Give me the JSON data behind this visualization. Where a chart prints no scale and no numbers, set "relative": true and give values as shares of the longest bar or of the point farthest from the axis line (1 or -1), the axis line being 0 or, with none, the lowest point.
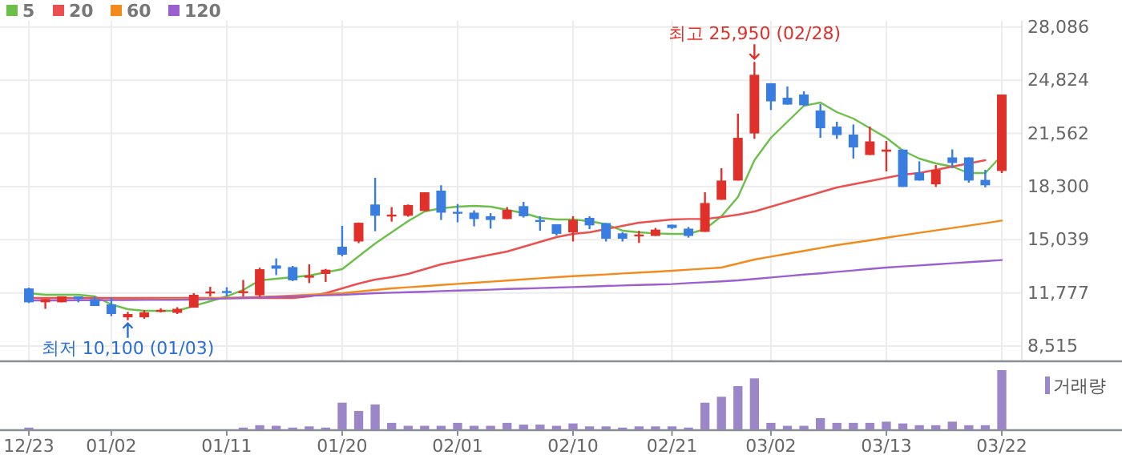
{
  "chart_data": [
    {
      "type": "candlestick",
      "categories": [
        null,
        null,
        null,
        null,
        null,
        null,
        null,
        null,
        null,
        null,
        null,
        null,
        null,
        null,
        null,
        null,
        null,
        null,
        null,
        null,
        null,
        null,
        null,
        null,
        null,
        null,
        null,
        null,
        null,
        null,
        null,
        null,
        null,
        null,
        null,
        null,
        null,
        null,
        null,
        null,
        null,
        null,
        null,
        null,
        null,
        null,
        null,
        null,
        null,
        null,
        null,
        null,
        null,
        null,
        null,
        null,
        null,
        null,
        null,
        null
      ],
      "ohlc": [
        [
          12050,
          12100,
          11150,
          11200
        ],
        [
          11200,
          11400,
          10800,
          11400
        ],
        [
          11200,
          11560,
          11200,
          11560
        ],
        [
          11560,
          11560,
          11200,
          11400
        ],
        [
          11400,
          11560,
          10970,
          10970
        ],
        [
          11070,
          11490,
          10350,
          10480
        ],
        [
          10280,
          10610,
          10100,
          10480
        ],
        [
          10280,
          10720,
          10190,
          10580
        ],
        [
          10680,
          10830,
          10580,
          10730
        ],
        [
          10550,
          10900,
          10480,
          10800
        ],
        [
          10870,
          11760,
          10870,
          11660
        ],
        [
          11800,
          12150,
          11560,
          11860
        ],
        [
          11890,
          12120,
          11560,
          11840
        ],
        [
          11830,
          12570,
          11560,
          11880
        ],
        [
          11630,
          13320,
          11530,
          13230
        ],
        [
          13460,
          13890,
          12870,
          13260
        ],
        [
          13360,
          13430,
          12500,
          12550
        ],
        [
          12710,
          13530,
          12380,
          12840
        ],
        [
          12940,
          13250,
          12450,
          13200
        ],
        [
          14610,
          15890,
          14020,
          14120
        ],
        [
          14930,
          16100,
          14830,
          16080
        ],
        [
          17200,
          18840,
          15560,
          16510
        ],
        [
          16500,
          17040,
          16150,
          16580
        ],
        [
          16510,
          17200,
          16450,
          17170
        ],
        [
          16800,
          17950,
          16800,
          17950
        ],
        [
          18050,
          18380,
          16250,
          16700
        ],
        [
          16750,
          17230,
          16110,
          16680
        ],
        [
          16700,
          16840,
          15860,
          16310
        ],
        [
          16480,
          16670,
          15720,
          16250
        ],
        [
          16310,
          17040,
          16310,
          16870
        ],
        [
          17100,
          17360,
          16400,
          16480
        ],
        [
          16250,
          16480,
          15590,
          16200
        ],
        [
          15990,
          15990,
          15300,
          15400
        ],
        [
          15490,
          16480,
          14930,
          16250
        ],
        [
          16380,
          16480,
          15690,
          15920
        ],
        [
          16060,
          16060,
          14930,
          15100
        ],
        [
          15430,
          15500,
          14930,
          15100
        ],
        [
          15300,
          15590,
          14840,
          15360
        ],
        [
          15270,
          15760,
          15270,
          15660
        ],
        [
          15960,
          15960,
          15700,
          15760
        ],
        [
          15720,
          15820,
          15170,
          15270
        ],
        [
          15520,
          17950,
          15520,
          17290
        ],
        [
          17490,
          19430,
          17490,
          18670
        ],
        [
          18670,
          22770,
          18670,
          21290
        ],
        [
          21560,
          25950,
          21230,
          25160
        ],
        [
          24640,
          24640,
          23000,
          23530
        ],
        [
          23750,
          24440,
          23330,
          23330
        ],
        [
          23950,
          24150,
          23250,
          23290
        ],
        [
          22970,
          23360,
          21290,
          21880
        ],
        [
          21980,
          22280,
          21230,
          21460
        ],
        [
          21490,
          22110,
          20020,
          20700
        ],
        [
          20240,
          21980,
          20240,
          21070
        ],
        [
          20440,
          21100,
          19230,
          20570
        ],
        [
          20570,
          20570,
          18280,
          18280
        ],
        [
          19160,
          19850,
          18670,
          18670
        ],
        [
          18440,
          19620,
          18280,
          19330
        ],
        [
          20090,
          20580,
          19430,
          19750
        ],
        [
          20090,
          20090,
          18540,
          18670
        ],
        [
          18710,
          19330,
          18250,
          18380
        ],
        [
          19260,
          23950,
          19130,
          23950
        ]
      ],
      "colors": [
        "#3a7de0",
        "#e0302a",
        "#e0302a",
        "#3a7de0",
        "#3a7de0",
        "#3a7de0",
        "#e0302a",
        "#e0302a",
        "#e0302a",
        "#e0302a",
        "#e0302a",
        "#e0302a",
        "#3a7de0",
        "#e0302a",
        "#e0302a",
        "#3a7de0",
        "#3a7de0",
        "#e0302a",
        "#e0302a",
        "#3a7de0",
        "#e0302a",
        "#3a7de0",
        "#e0302a",
        "#e0302a",
        "#e0302a",
        "#3a7de0",
        "#3a7de0",
        "#3a7de0",
        "#3a7de0",
        "#e0302a",
        "#3a7de0",
        "#3a7de0",
        "#3a7de0",
        "#e0302a",
        "#3a7de0",
        "#3a7de0",
        "#3a7de0",
        "#e0302a",
        "#e0302a",
        "#3a7de0",
        "#3a7de0",
        "#e0302a",
        "#e0302a",
        "#e0302a",
        "#e0302a",
        "#3a7de0",
        "#3a7de0",
        "#3a7de0",
        "#3a7de0",
        "#3a7de0",
        "#3a7de0",
        "#e0302a",
        "#e0302a",
        "#3a7de0",
        "#3a7de0",
        "#e0302a",
        "#3a7de0",
        "#3a7de0",
        "#3a7de0",
        "#e0302a"
      ],
      "series": [
        {
          "name": "5",
          "type": "line",
          "color": "#6cc04a",
          "values": [
            11759,
            11661,
            11661,
            11661,
            11562,
            11071,
            10776,
            10678,
            10678,
            10678,
            10973,
            11267,
            11562,
            11956,
            12545,
            12644,
            12742,
            12840,
            13037,
            13233,
            14020,
            14806,
            15494,
            16182,
            16772,
            16969,
            17067,
            17116,
            17067,
            16871,
            16674,
            16379,
            16281,
            16281,
            16182,
            15986,
            15593,
            15494,
            15425,
            15396,
            15396,
            15691,
            16477,
            17657,
            19918,
            21294,
            22277,
            23260,
            23457,
            22867,
            22474,
            21884,
            21294,
            20508,
            20016,
            19721,
            19525,
            19131,
            19131,
            20213
          ]
        },
        {
          "name": "20",
          "type": "line",
          "color": "#ec4f4f",
          "values": [
            11464,
            11464,
            11464,
            11464,
            11464,
            11464,
            11464,
            11464,
            11464,
            11464,
            11464,
            11464,
            11464,
            11464,
            11464,
            11464,
            11464,
            11562,
            11759,
            12054,
            12349,
            12594,
            12742,
            12939,
            13233,
            13528,
            13725,
            13922,
            14118,
            14315,
            14610,
            14905,
            15199,
            15396,
            15494,
            15691,
            15888,
            16084,
            16182,
            16281,
            16310,
            16310,
            16428,
            16576,
            16772,
            17067,
            17362,
            17657,
            17952,
            18247,
            18443,
            18640,
            18837,
            19033,
            19131,
            19328,
            19525,
            19721,
            19918,
            null
          ]
        },
        {
          "name": "60",
          "type": "line",
          "color": "#f28a1c",
          "values": [
            null,
            null,
            null,
            null,
            null,
            11366,
            11366,
            11385,
            11395,
            11405,
            11415,
            11444,
            11464,
            11503,
            11533,
            11562,
            11611,
            11661,
            11710,
            11759,
            11857,
            11956,
            12054,
            12123,
            12191,
            12260,
            12329,
            12398,
            12467,
            12535,
            12604,
            12673,
            12742,
            12801,
            12850,
            12909,
            12968,
            13027,
            13076,
            13135,
            13204,
            13263,
            13332,
            13577,
            13823,
            14000,
            14177,
            14354,
            14531,
            14708,
            14855,
            15003,
            15160,
            15317,
            15465,
            15612,
            15760,
            15907,
            16055,
            16212
          ]
        },
        {
          "name": "120",
          "type": "line",
          "color": "#9b5fd0",
          "values": [
            11317,
            11317,
            11317,
            11326,
            11326,
            11336,
            11336,
            11346,
            11346,
            11356,
            11366,
            11395,
            11435,
            11464,
            11494,
            11533,
            11562,
            11592,
            11631,
            11661,
            11710,
            11759,
            11788,
            11818,
            11847,
            11887,
            11916,
            11946,
            11975,
            12014,
            12044,
            12073,
            12103,
            12132,
            12162,
            12201,
            12231,
            12260,
            12290,
            12319,
            12378,
            12427,
            12486,
            12545,
            12634,
            12722,
            12811,
            12899,
            12978,
            13066,
            13155,
            13243,
            13332,
            13400,
            13459,
            13528,
            13597,
            13666,
            13725,
            13794
          ]
        }
      ],
      "ylim": [
        7630,
        28470
      ],
      "yticks": [
        {
          "value": 8515,
          "label": "8,515"
        },
        {
          "value": 11777,
          "label": "11,777"
        },
        {
          "value": 15039,
          "label": "15,039"
        },
        {
          "value": 18300,
          "label": "18,300"
        },
        {
          "value": 21562,
          "label": "21,562"
        },
        {
          "value": 24824,
          "label": "24,824"
        },
        {
          "value": 28086,
          "label": "28,086"
        }
      ],
      "grid": true,
      "legend": "top left",
      "tick_labels": "y",
      "annotations": [
        {
          "text": "최고 25,950 (02/28)",
          "y": 25950
        },
        {
          "text": "최저 10,100 (01/03)",
          "y": 10100
        }
      ]
    },
    {
      "type": "bar",
      "categories": [
        "12/23",
        null,
        null,
        null,
        null,
        "01/02",
        null,
        null,
        null,
        null,
        null,
        null,
        "01/11",
        null,
        null,
        null,
        null,
        null,
        null,
        "01/20",
        null,
        null,
        null,
        null,
        null,
        null,
        "02/01",
        null,
        null,
        null,
        null,
        null,
        null,
        "02/10",
        null,
        null,
        null,
        null,
        null,
        "02/21",
        null,
        null,
        null,
        null,
        null,
        "03/02",
        null,
        null,
        null,
        null,
        null,
        null,
        "03/13",
        null,
        null,
        null,
        null,
        null,
        null,
        "03/22"
      ],
      "series": [
        {
          "name": "거래량",
          "color": "#9b86c7",
          "values": [
            0.03,
            null,
            null,
            null,
            null,
            null,
            null,
            null,
            null,
            null,
            null,
            null,
            null,
            0.03,
            0.07,
            0.06,
            0.03,
            0.05,
            0.03,
            0.45,
            0.31,
            0.42,
            0.11,
            0.06,
            0.06,
            0.06,
            0.11,
            0.06,
            0.06,
            0.11,
            0.08,
            0.08,
            0.06,
            0.1,
            0.05,
            0.05,
            0.03,
            0.05,
            0.05,
            0.05,
            0.03,
            0.45,
            0.55,
            0.73,
            0.86,
            0.11,
            0.06,
            0.06,
            0.19,
            0.11,
            0.11,
            0.11,
            0.13,
            0.1,
            0.07,
            0.07,
            0.13,
            0.07,
            0.07,
            1
          ]
        }
      ],
      "relative": true,
      "legend": "top right",
      "tick_labels": "x"
    }
  ]
}
